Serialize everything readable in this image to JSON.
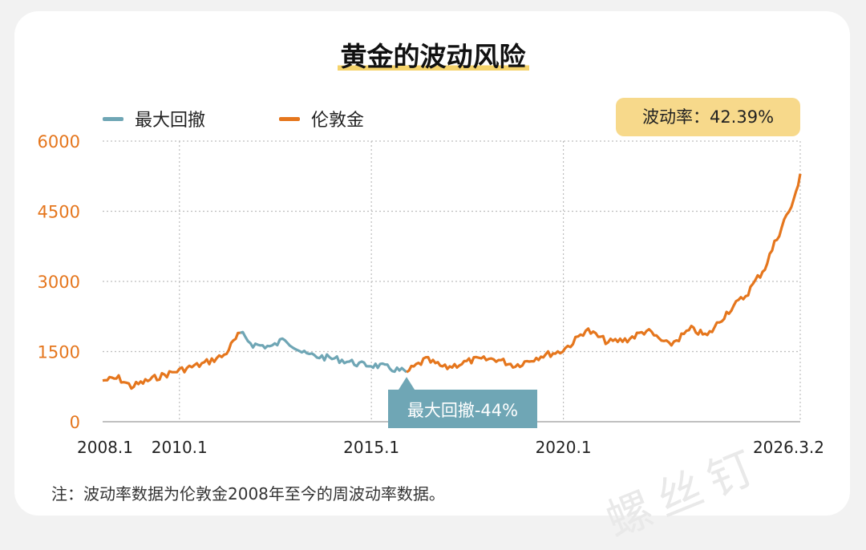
{
  "title": "黄金的波动风险",
  "legend": {
    "drawdown": "最大回撤",
    "price": "伦敦金"
  },
  "volatility_badge": "波动率：42.39%",
  "drawdown_label": "最大回撤-44%",
  "footnote": "注：波动率数据为伦敦金2008年至今的周波动率数据。",
  "watermark": "螺丝钉",
  "colors": {
    "price": "#e5761d",
    "drawdown": "#6fa6b5",
    "axis_text": "#e5761d",
    "badge": "#f7d98b"
  },
  "chart_data": {
    "type": "line",
    "title": "黄金的波动风险",
    "xlabel": "",
    "ylabel": "",
    "ylim": [
      0,
      6000
    ],
    "y_ticks": [
      0,
      1500,
      3000,
      4500,
      6000
    ],
    "x_ticks": [
      "2008.1",
      "2010.1",
      "2015.1",
      "2020.1",
      "2026.3.2"
    ],
    "grid": true,
    "legend_position": "top-left",
    "series": [
      {
        "name": "伦敦金",
        "x": [
          "2008.1",
          "2008.6",
          "2008.10",
          "2009.6",
          "2010.1",
          "2010.8",
          "2011.3",
          "2011.8"
        ],
        "values": [
          880,
          930,
          750,
          950,
          1100,
          1230,
          1420,
          1900
        ]
      },
      {
        "name": "最大回撤",
        "x": [
          "2011.8",
          "2011.12",
          "2012.6",
          "2012.10",
          "2013.4",
          "2013.8",
          "2014.3",
          "2014.10",
          "2015.3",
          "2015.12"
        ],
        "values": [
          1900,
          1650,
          1600,
          1780,
          1450,
          1400,
          1330,
          1220,
          1200,
          1060
        ]
      },
      {
        "name": "伦敦金",
        "x": [
          "2015.12",
          "2016.6",
          "2016.12",
          "2017.9",
          "2018.4",
          "2018.10",
          "2019.6",
          "2019.12",
          "2020.4",
          "2020.8",
          "2021.3",
          "2021.9",
          "2022.3",
          "2022.10",
          "2023.5",
          "2023.10",
          "2024.4",
          "2024.10",
          "2025.4",
          "2025.10",
          "2026.1",
          "2026.3.2"
        ],
        "values": [
          1060,
          1330,
          1150,
          1320,
          1340,
          1200,
          1410,
          1500,
          1690,
          1970,
          1700,
          1760,
          1950,
          1630,
          1980,
          1830,
          2330,
          2700,
          3300,
          4300,
          4700,
          5300
        ]
      }
    ]
  }
}
